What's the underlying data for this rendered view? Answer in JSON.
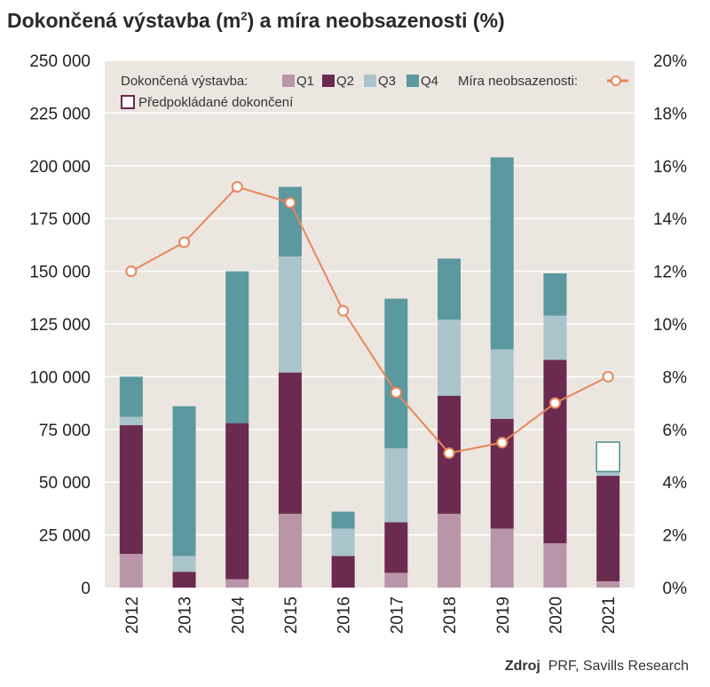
{
  "title": {
    "prefix": "Dokončená výstavba (m",
    "sup": "2",
    "suffix": ") a míra neobsazenosti (%)"
  },
  "source": {
    "label": "Zdroj",
    "text": "PRF, Savills Research"
  },
  "legend": {
    "completed_label": "Dokončená výstavba:",
    "vacancy_label": "Míra neobsazenosti:",
    "forecast_label": "Předpokládané dokončení"
  },
  "colors": {
    "background": "#ece6e1",
    "Q1": "#b995a9",
    "Q2": "#6b2a4f",
    "Q3": "#a9c5cb",
    "Q4": "#5b98a0",
    "forecast": "#ffffff",
    "forecast_border": "#4f8c8e",
    "line": "#e8875a"
  },
  "chart_data": {
    "type": "bar",
    "stacked": true,
    "categories": [
      "2012",
      "2013",
      "2014",
      "2015",
      "2016",
      "2017",
      "2018",
      "2019",
      "2020",
      "2021"
    ],
    "series": [
      {
        "name": "Q1",
        "values": [
          16000,
          0,
          4000,
          35000,
          0,
          7000,
          35000,
          28000,
          21000,
          3000
        ]
      },
      {
        "name": "Q2",
        "values": [
          61000,
          7500,
          74000,
          67000,
          15000,
          24000,
          56000,
          52000,
          87000,
          50000
        ]
      },
      {
        "name": "Q3",
        "values": [
          4000,
          7500,
          0,
          55000,
          13000,
          35000,
          36000,
          33000,
          21000,
          2000
        ]
      },
      {
        "name": "Q4",
        "values": [
          19000,
          71000,
          72000,
          33000,
          8000,
          71000,
          29000,
          91000,
          20000,
          0
        ]
      },
      {
        "name": "Předpokládané dokončení",
        "values": [
          0,
          0,
          0,
          0,
          0,
          0,
          0,
          0,
          0,
          14000
        ]
      }
    ],
    "line_series": {
      "name": "Míra neobsazenosti",
      "axis": "right",
      "values": [
        12.0,
        13.1,
        15.2,
        14.6,
        10.5,
        7.4,
        5.1,
        5.5,
        7.0,
        8.0
      ]
    },
    "ylim": [
      0,
      250000
    ],
    "y_ticks": [
      "0",
      "25 000",
      "50 000",
      "75 000",
      "100 000",
      "125 000",
      "150 000",
      "175 000",
      "200 000",
      "225 000",
      "250 000"
    ],
    "y2lim": [
      0,
      20
    ],
    "y2_ticks": [
      "0%",
      "2%",
      "4%",
      "6%",
      "8%",
      "10%",
      "12%",
      "14%",
      "16%",
      "18%",
      "20%"
    ],
    "grid": true,
    "legend_position": "top-left"
  }
}
